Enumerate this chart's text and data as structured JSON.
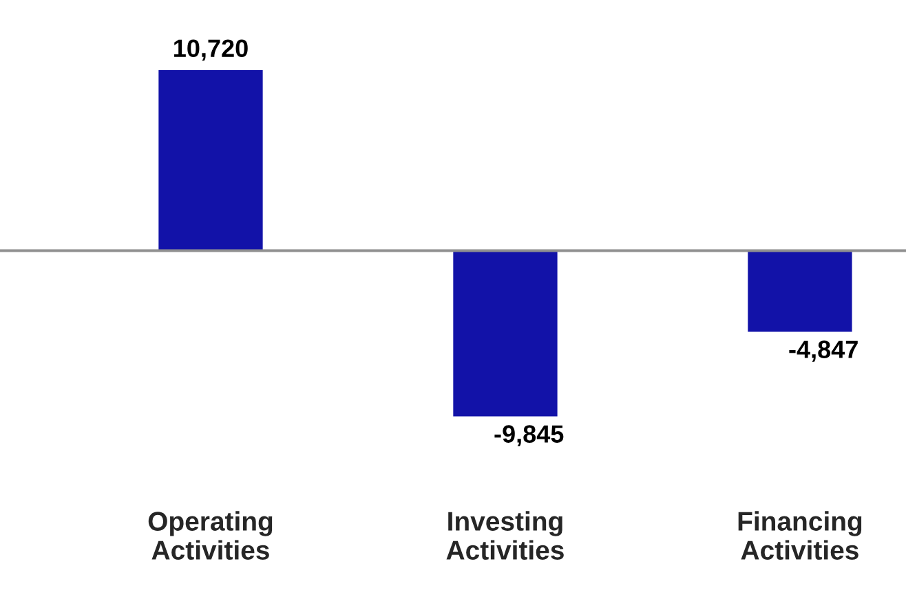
{
  "chart_data": {
    "type": "bar",
    "categories": [
      "Operating Activities",
      "Investing Activities",
      "Financing Activities"
    ],
    "values": [
      10720,
      -9845,
      -4847
    ],
    "color": "#1212a8",
    "value_labels": [
      "10,720",
      "-9,845",
      "-4,847"
    ],
    "grid": false,
    "legend": false
  }
}
